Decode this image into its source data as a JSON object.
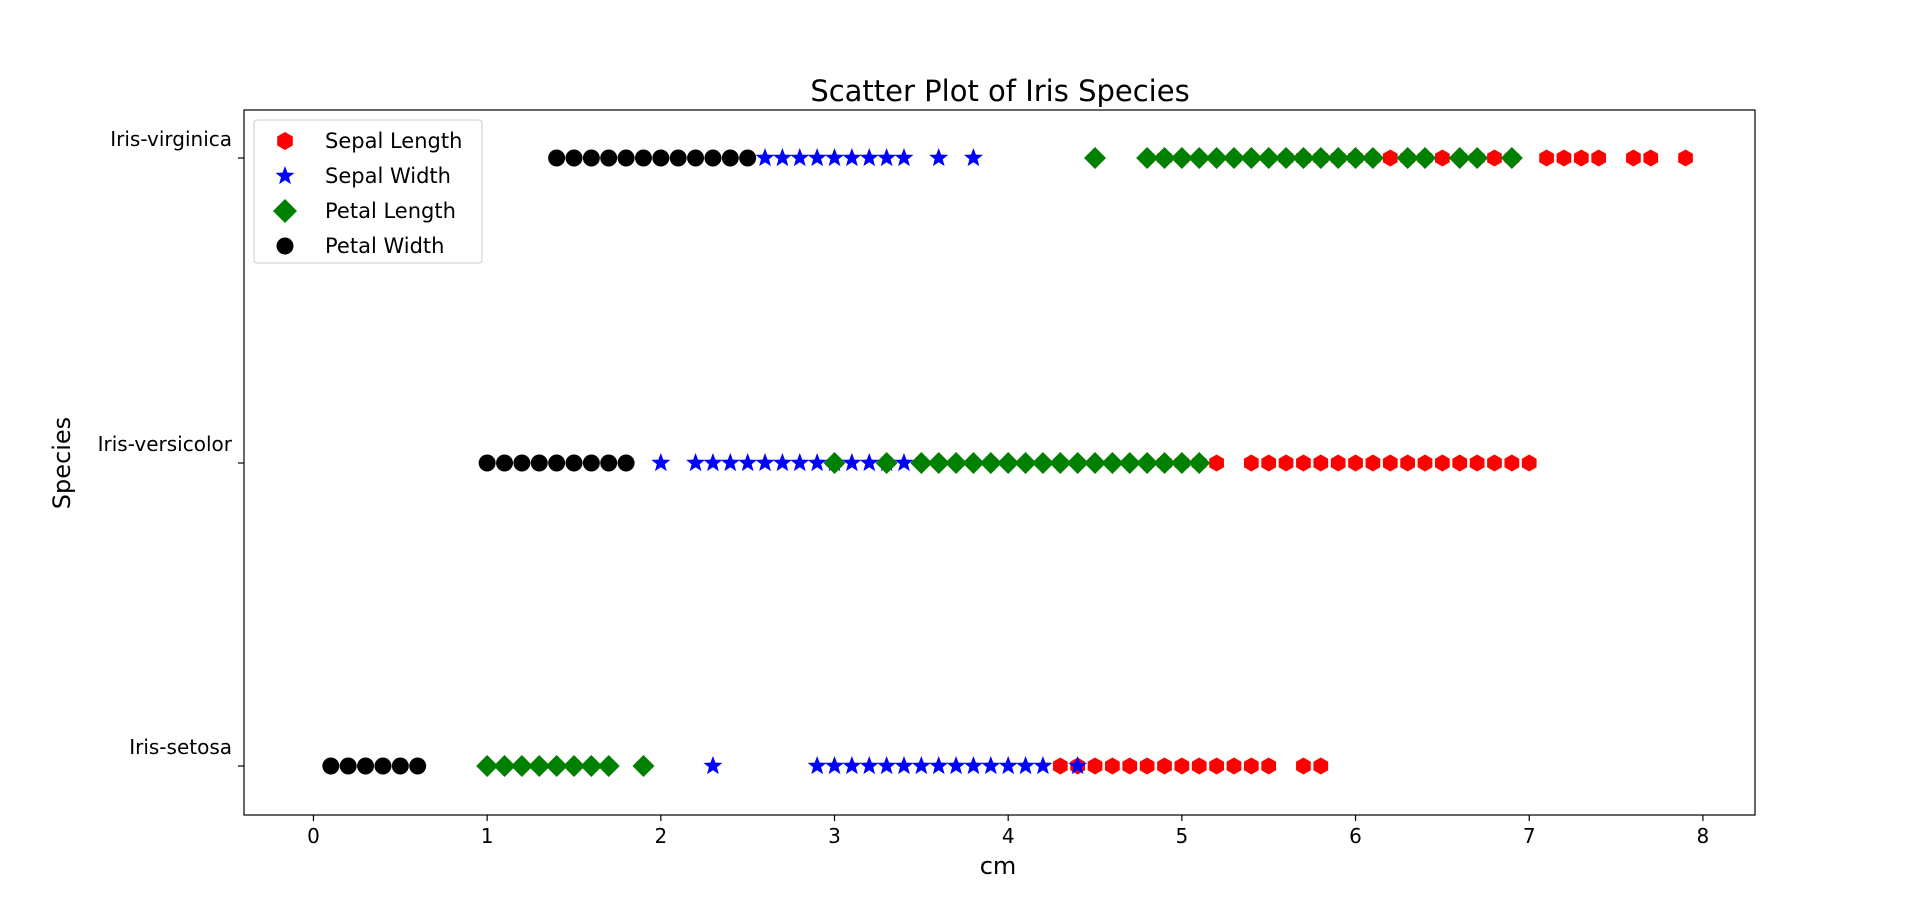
{
  "chart_data": {
    "type": "scatter",
    "title": "Scatter Plot of Iris Species",
    "xlabel": "cm",
    "ylabel": "Species",
    "xlim": [
      -0.4,
      8.3
    ],
    "x_ticks": [
      0,
      1,
      2,
      3,
      4,
      5,
      6,
      7,
      8
    ],
    "categories": [
      "Iris-setosa",
      "Iris-versicolor",
      "Iris-virginica"
    ],
    "grid": false,
    "legend_position": "top-left",
    "series": [
      {
        "name": "Sepal Length",
        "color": "#ff0000",
        "marker": "hexagon",
        "values": {
          "Iris-setosa": [
            4.3,
            4.4,
            4.5,
            4.6,
            4.7,
            4.8,
            4.9,
            5.0,
            5.1,
            5.2,
            5.3,
            5.4,
            5.5,
            5.7,
            5.8
          ],
          "Iris-versicolor": [
            4.9,
            5.0,
            5.1,
            5.2,
            5.4,
            5.5,
            5.6,
            5.7,
            5.8,
            5.9,
            6.0,
            6.1,
            6.2,
            6.3,
            6.4,
            6.5,
            6.6,
            6.7,
            6.8,
            6.9,
            7.0
          ],
          "Iris-virginica": [
            4.9,
            5.6,
            5.7,
            5.8,
            5.9,
            6.0,
            6.1,
            6.2,
            6.3,
            6.4,
            6.5,
            6.7,
            6.8,
            6.9,
            7.1,
            7.2,
            7.3,
            7.4,
            7.6,
            7.7,
            7.9
          ]
        }
      },
      {
        "name": "Sepal Width",
        "color": "#0000ff",
        "marker": "star",
        "values": {
          "Iris-setosa": [
            2.3,
            2.9,
            3.0,
            3.1,
            3.2,
            3.3,
            3.4,
            3.5,
            3.6,
            3.7,
            3.8,
            3.9,
            4.0,
            4.1,
            4.2,
            4.4
          ],
          "Iris-versicolor": [
            2.0,
            2.2,
            2.3,
            2.4,
            2.5,
            2.6,
            2.7,
            2.8,
            2.9,
            3.0,
            3.1,
            3.2,
            3.3,
            3.4
          ],
          "Iris-virginica": [
            2.6,
            2.7,
            2.8,
            2.9,
            3.0,
            3.1,
            3.2,
            3.3,
            3.4,
            3.6,
            3.8
          ]
        }
      },
      {
        "name": "Petal Length",
        "color": "#008000",
        "marker": "diamond",
        "values": {
          "Iris-setosa": [
            1.0,
            1.1,
            1.2,
            1.3,
            1.4,
            1.5,
            1.6,
            1.7,
            1.9
          ],
          "Iris-versicolor": [
            3.0,
            3.3,
            3.5,
            3.6,
            3.7,
            3.8,
            3.9,
            4.0,
            4.1,
            4.2,
            4.3,
            4.4,
            4.5,
            4.6,
            4.7,
            4.8,
            4.9,
            5.0,
            5.1
          ],
          "Iris-virginica": [
            4.5,
            4.8,
            4.9,
            5.0,
            5.1,
            5.2,
            5.3,
            5.4,
            5.5,
            5.6,
            5.7,
            5.8,
            5.9,
            6.0,
            6.1,
            6.3,
            6.4,
            6.6,
            6.7,
            6.9
          ]
        }
      },
      {
        "name": "Petal Width",
        "color": "#000000",
        "marker": "circle",
        "values": {
          "Iris-setosa": [
            0.1,
            0.2,
            0.3,
            0.4,
            0.5,
            0.6
          ],
          "Iris-versicolor": [
            1.0,
            1.1,
            1.2,
            1.3,
            1.4,
            1.5,
            1.6,
            1.7,
            1.8
          ],
          "Iris-virginica": [
            1.4,
            1.5,
            1.6,
            1.7,
            1.8,
            1.9,
            2.0,
            2.1,
            2.2,
            2.3,
            2.4,
            2.5
          ]
        }
      }
    ]
  }
}
